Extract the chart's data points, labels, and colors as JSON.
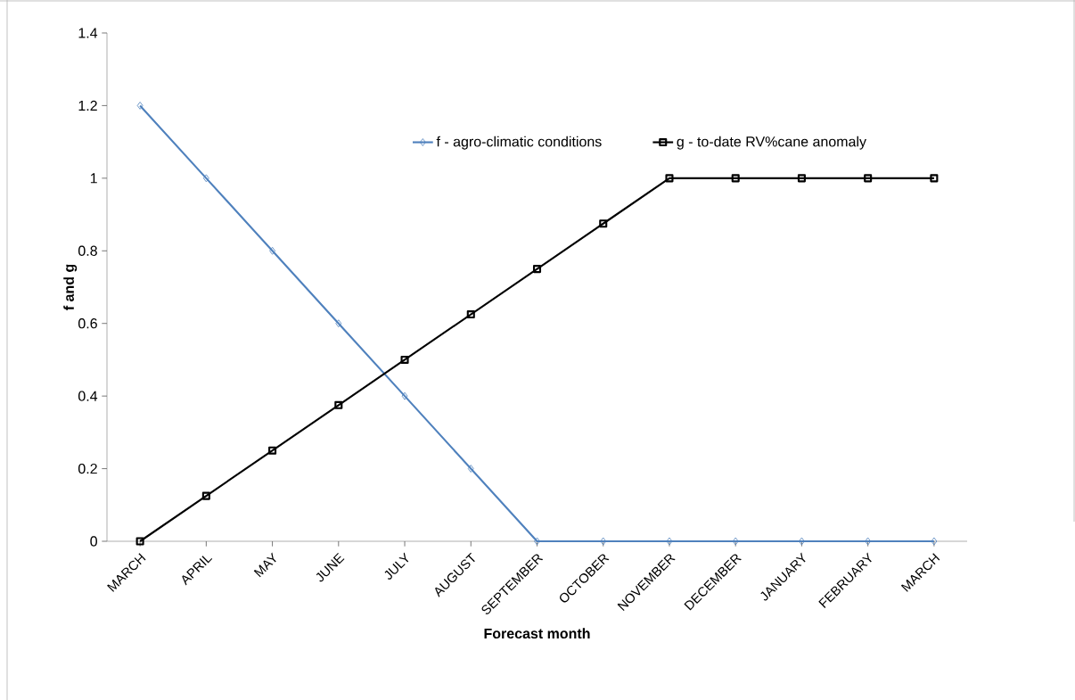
{
  "chart_data": {
    "type": "line",
    "xlabel": "Forecast month",
    "ylabel": "f and g",
    "categories": [
      "MARCH",
      "APRIL",
      "MAY",
      "JUNE",
      "JULY",
      "AUGUST",
      "SEPTEMBER",
      "OCTOBER",
      "NOVEMBER",
      "DECEMBER",
      "JANUARY",
      "FEBRUARY",
      "MARCH"
    ],
    "series": [
      {
        "name": "f - agro-climatic conditions",
        "color": "#4f81bd",
        "marker": "diamond",
        "values": [
          1.2,
          1.0,
          0.8,
          0.6,
          0.4,
          0.2,
          0,
          0,
          0,
          0,
          0,
          0,
          0
        ]
      },
      {
        "name": "g - to-date RV%cane anomaly",
        "color": "#000000",
        "marker": "square",
        "values": [
          0,
          0.125,
          0.25,
          0.375,
          0.5,
          0.625,
          0.75,
          0.875,
          1,
          1,
          1,
          1,
          1
        ]
      }
    ],
    "ylim": [
      0,
      1.4
    ],
    "yticks": [
      0,
      0.2,
      0.4,
      0.6,
      0.8,
      1,
      1.2,
      1.4
    ],
    "grid": false,
    "legend": "top",
    "line_style": "solid"
  }
}
